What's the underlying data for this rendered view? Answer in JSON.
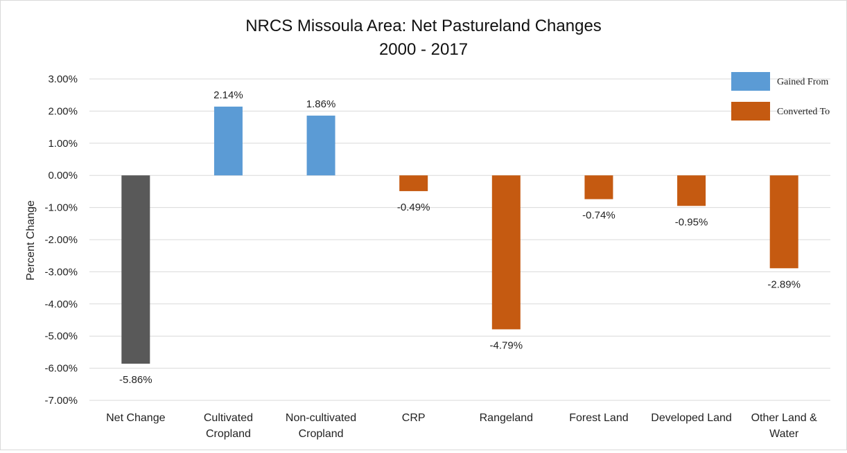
{
  "chart_data": {
    "type": "bar",
    "title": [
      "NRCS Missoula Area: Net Pastureland Changes",
      "2000 - 2017"
    ],
    "ylabel": "Percent Change",
    "xlabel": "",
    "ylim": [
      -7,
      3
    ],
    "yticks": [
      "3.00%",
      "2.00%",
      "1.00%",
      "0.00%",
      "-1.00%",
      "-2.00%",
      "-3.00%",
      "-4.00%",
      "-5.00%",
      "-6.00%",
      "-7.00%"
    ],
    "grid": true,
    "legend_position": "top-right",
    "categories": [
      [
        "Net Change"
      ],
      [
        "Cultivated",
        "Cropland"
      ],
      [
        "Non-cultivated",
        "Cropland"
      ],
      [
        "CRP"
      ],
      [
        "Rangeland"
      ],
      [
        "Forest Land"
      ],
      [
        "Developed Land"
      ],
      [
        "Other Land &",
        "Water"
      ]
    ],
    "values": [
      -5.86,
      2.14,
      1.86,
      -0.49,
      -4.79,
      -0.74,
      -0.95,
      -2.89
    ],
    "data_labels": [
      "-5.86%",
      "2.14%",
      "1.86%",
      "-0.49%",
      "-4.79%",
      "-0.74%",
      "-0.95%",
      "-2.89%"
    ],
    "bar_groups": [
      "net",
      "gained",
      "gained",
      "converted",
      "converted",
      "converted",
      "converted",
      "converted"
    ],
    "legend": [
      {
        "name": "Gained From",
        "group": "gained",
        "color": "#5b9bd5"
      },
      {
        "name": "Converted To",
        "group": "converted",
        "color": "#c55a11"
      }
    ],
    "colors": {
      "net": "#595959",
      "gained": "#5b9bd5",
      "converted": "#c55a11",
      "grid": "#d9d9d9"
    }
  }
}
